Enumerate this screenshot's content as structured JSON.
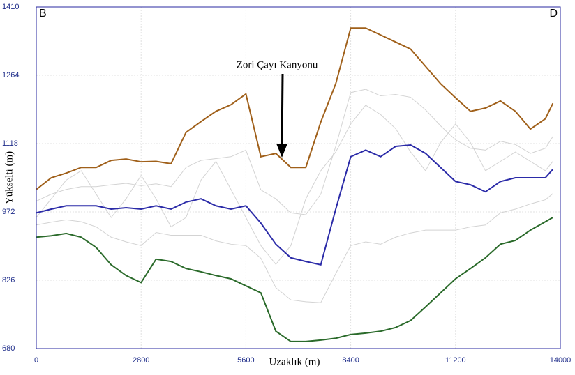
{
  "chart_data": {
    "type": "line",
    "xlabel": "Uzaklık (m)",
    "ylabel": "Yükselti (m)",
    "corner_left": "B",
    "corner_right": "D",
    "annotation": "Zori Çayı Kanyonu",
    "x": [
      0,
      400,
      800,
      1200,
      1600,
      2000,
      2400,
      2800,
      3200,
      3600,
      4000,
      4400,
      4800,
      5200,
      5600,
      6000,
      6400,
      6800,
      7200,
      7600,
      8000,
      8400,
      8800,
      9200,
      9600,
      10000,
      10400,
      10800,
      11200,
      11600,
      12000,
      12400,
      12800,
      13200,
      13600,
      13800
    ],
    "series": [
      {
        "color": "#d3d3d3",
        "values": [
          995,
          1010,
          1020,
          1026,
          1026,
          1030,
          1033,
          1028,
          1032,
          1026,
          1067,
          1082,
          1086,
          1090,
          1104,
          1019,
          1000,
          970,
          966,
          1010,
          1112,
          1227,
          1234,
          1220,
          1223,
          1217,
          1190,
          1156,
          1126,
          1108,
          1104,
          1123,
          1116,
          1097,
          1108,
          1133
        ]
      },
      {
        "color": "#d3d3d3",
        "values": [
          960,
          1000,
          1040,
          1060,
          1010,
          960,
          1000,
          1050,
          1000,
          940,
          960,
          1040,
          1080,
          1020,
          960,
          900,
          860,
          900,
          1000,
          1060,
          1100,
          1160,
          1200,
          1180,
          1150,
          1100,
          1060,
          1120,
          1160,
          1120,
          1060,
          1080,
          1100,
          1080,
          1060,
          1080
        ]
      },
      {
        "color": "#d3d3d3",
        "values": [
          944,
          950,
          955,
          951,
          940,
          918,
          908,
          900,
          928,
          922,
          922,
          922,
          910,
          903,
          900,
          873,
          810,
          784,
          780,
          778,
          840,
          900,
          908,
          903,
          918,
          927,
          933,
          933,
          933,
          940,
          944,
          970,
          978,
          989,
          998,
          1011
        ]
      },
      {
        "color": "#a0601a",
        "values": [
          1020,
          1045,
          1055,
          1067,
          1067,
          1082,
          1085,
          1079,
          1080,
          1075,
          1142,
          1165,
          1187,
          1201,
          1224,
          1090,
          1097,
          1067,
          1067,
          1164,
          1246,
          1365,
          1365,
          1350,
          1335,
          1320,
          1283,
          1246,
          1216,
          1187,
          1194,
          1209,
          1187,
          1149,
          1171,
          1204
        ]
      },
      {
        "color": "#2b2ba8",
        "values": [
          970,
          978,
          985,
          985,
          985,
          978,
          981,
          978,
          985,
          978,
          993,
          1000,
          985,
          978,
          985,
          948,
          903,
          874,
          866,
          859,
          978,
          1090,
          1104,
          1090,
          1112,
          1115,
          1097,
          1067,
          1037,
          1030,
          1015,
          1037,
          1045,
          1045,
          1045,
          1063
        ]
      },
      {
        "color": "#2a6a2a",
        "values": [
          918,
          921,
          926,
          918,
          896,
          859,
          836,
          821,
          871,
          866,
          851,
          844,
          836,
          829,
          814,
          799,
          717,
          695,
          695,
          698,
          702,
          710,
          713,
          717,
          725,
          740,
          769,
          799,
          829,
          851,
          874,
          903,
          911,
          933,
          951,
          960
        ]
      }
    ],
    "xlim": [
      0,
      14000
    ],
    "xticks": [
      0,
      2800,
      5600,
      8400,
      11200,
      14000
    ],
    "ylim": [
      680,
      1410
    ],
    "yticks": [
      680,
      826,
      972,
      1118,
      1264,
      1410
    ],
    "grid": true
  }
}
